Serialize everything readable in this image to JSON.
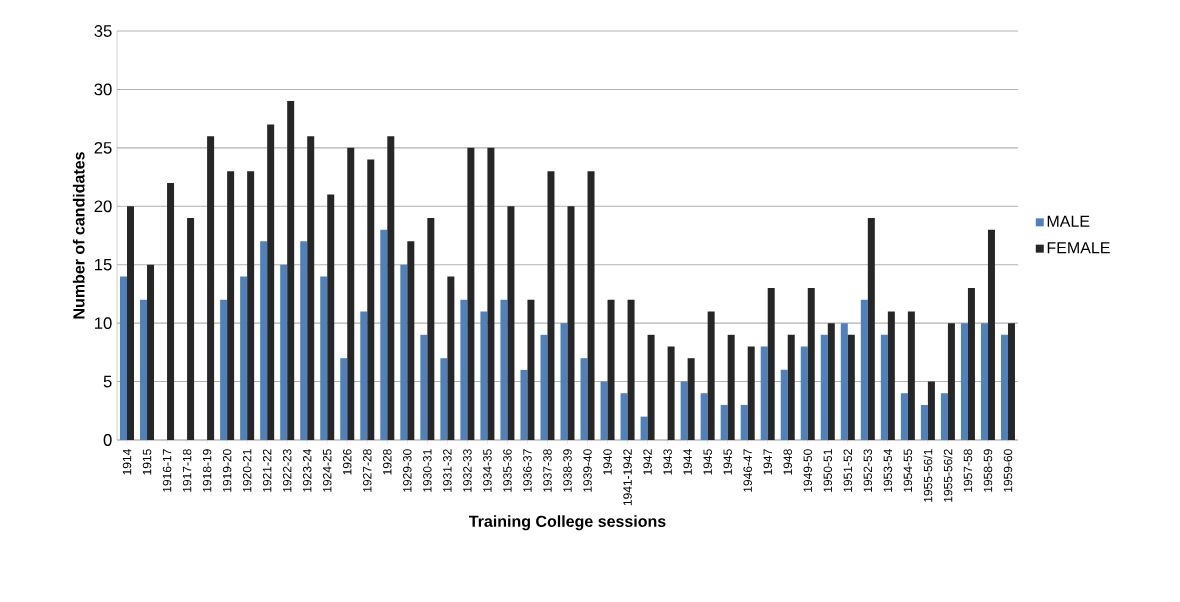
{
  "chart_data": {
    "type": "bar",
    "xlabel": "Training College sessions",
    "ylabel": "Number of candidates",
    "categories": [
      "1914",
      "1915",
      "1916-17",
      "1917-18",
      "1918-19",
      "1919-20",
      "1920-21",
      "1921-22",
      "1922-23",
      "1923-24",
      "1924-25",
      "1926",
      "1927-28",
      "1928",
      "1929-30",
      "1930-31",
      "1931-32",
      "1932-33",
      "1934-35",
      "1935-36",
      "1936-37",
      "1937-38",
      "1938-39",
      "1939-40",
      "1940",
      "1941-1942",
      "1942",
      "1943",
      "1944",
      "1945",
      "1945",
      "1946-47",
      "1947",
      "1948",
      "1949-50",
      "1950-51",
      "1951-52",
      "1952-53",
      "1953-54",
      "1954-55",
      "1955-56/1",
      "1955-56/2",
      "1957-58",
      "1958-59",
      "1959-60"
    ],
    "series": [
      {
        "name": "MALE",
        "color": "#4f81bd",
        "values": [
          14,
          12,
          0,
          0,
          0,
          12,
          14,
          17,
          15,
          17,
          14,
          7,
          11,
          18,
          15,
          9,
          7,
          12,
          11,
          12,
          6,
          9,
          10,
          7,
          5,
          4,
          2,
          0,
          5,
          4,
          3,
          3,
          8,
          6,
          8,
          9,
          10,
          12,
          9,
          4,
          3,
          4,
          10,
          10,
          9
        ]
      },
      {
        "name": "FEMALE",
        "color": "#262626",
        "values": [
          20,
          15,
          22,
          19,
          26,
          23,
          23,
          27,
          29,
          26,
          21,
          25,
          24,
          26,
          17,
          19,
          14,
          25,
          25,
          20,
          12,
          23,
          20,
          23,
          12,
          12,
          9,
          8,
          7,
          11,
          9,
          8,
          13,
          9,
          13,
          10,
          9,
          19,
          11,
          11,
          5,
          10,
          13,
          18,
          10
        ]
      }
    ],
    "ylim": [
      0,
      35
    ],
    "yticks": [
      0,
      5,
      10,
      15,
      20,
      25,
      30,
      35
    ],
    "grid": "y",
    "legend": "right"
  }
}
